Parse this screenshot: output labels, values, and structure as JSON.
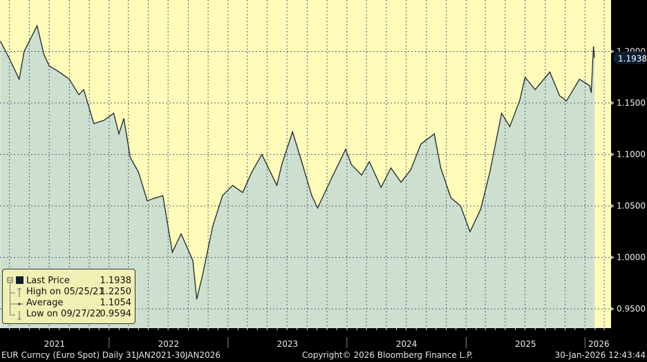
{
  "chart_data": {
    "type": "area",
    "x": [
      "2021-02-01",
      "2021-03-01",
      "2021-03-31",
      "2021-04-15",
      "2021-05-25",
      "2021-06-15",
      "2021-07-01",
      "2021-08-01",
      "2021-09-01",
      "2021-09-30",
      "2021-10-15",
      "2021-11-15",
      "2021-12-15",
      "2022-01-15",
      "2022-01-31",
      "2022-02-15",
      "2022-03-07",
      "2022-04-01",
      "2022-04-28",
      "2022-05-15",
      "2022-06-15",
      "2022-07-14",
      "2022-08-10",
      "2022-09-15",
      "2022-09-27",
      "2022-10-15",
      "2022-11-15",
      "2022-12-15",
      "2023-01-15",
      "2023-02-15",
      "2023-03-15",
      "2023-04-15",
      "2023-05-31",
      "2023-06-15",
      "2023-07-18",
      "2023-08-15",
      "2023-09-15",
      "2023-10-03",
      "2023-11-15",
      "2023-12-28",
      "2024-01-15",
      "2024-02-15",
      "2024-03-10",
      "2024-04-15",
      "2024-05-15",
      "2024-06-15",
      "2024-07-15",
      "2024-08-15",
      "2024-09-25",
      "2024-10-15",
      "2024-11-15",
      "2024-12-15",
      "2025-01-13",
      "2025-02-15",
      "2025-03-15",
      "2025-04-20",
      "2025-05-15",
      "2025-06-15",
      "2025-07-01",
      "2025-08-01",
      "2025-09-15",
      "2025-10-15",
      "2025-11-05",
      "2025-12-15",
      "2026-01-15",
      "2026-01-20",
      "2026-01-27",
      "2026-01-30"
    ],
    "values": [
      1.21,
      1.193,
      1.173,
      1.2,
      1.225,
      1.197,
      1.186,
      1.18,
      1.173,
      1.158,
      1.163,
      1.13,
      1.133,
      1.14,
      1.12,
      1.135,
      1.097,
      1.083,
      1.055,
      1.057,
      1.06,
      1.005,
      1.023,
      0.997,
      0.9594,
      0.983,
      1.03,
      1.06,
      1.07,
      1.063,
      1.083,
      1.1,
      1.07,
      1.09,
      1.122,
      1.093,
      1.06,
      1.048,
      1.077,
      1.105,
      1.09,
      1.08,
      1.093,
      1.068,
      1.087,
      1.073,
      1.085,
      1.11,
      1.12,
      1.087,
      1.058,
      1.05,
      1.025,
      1.047,
      1.083,
      1.14,
      1.127,
      1.153,
      1.175,
      1.163,
      1.18,
      1.157,
      1.152,
      1.173,
      1.167,
      1.16,
      1.205,
      1.1938
    ],
    "xlim": [
      "2021-01-31",
      "2026-02-20"
    ],
    "ylim": [
      0.932,
      1.25
    ],
    "y_ticks": [
      "1.2000",
      "1.1500",
      "1.1000",
      "1.0500",
      "1.0000",
      "0.9500"
    ],
    "x_ticks": [
      "2021",
      "2022",
      "2023",
      "2024",
      "2025",
      "2026"
    ],
    "grid": true,
    "legend_placement": "bottom-left",
    "last_price_tag": "1.1938",
    "legend": [
      {
        "label": "Last Price",
        "value": "1.1938"
      },
      {
        "label": "High on 05/25/21",
        "value": "1.2250"
      },
      {
        "label": "Average",
        "value": "1.1054"
      },
      {
        "label": "Low on 09/27/22",
        "value": "0.9594"
      }
    ],
    "colors": {
      "background": "#fffbb8",
      "area": "#cde0cf",
      "line": "#1a2630",
      "axis_bg": "#000000",
      "tag": "#0d1f33"
    }
  },
  "footer": {
    "left": "EUR Curncy (Euro Spot) Daily 31JAN2021-30JAN2026",
    "center": "Copyright© 2026 Bloomberg Finance L.P.",
    "right": "30-Jan-2026 12:43:44"
  }
}
